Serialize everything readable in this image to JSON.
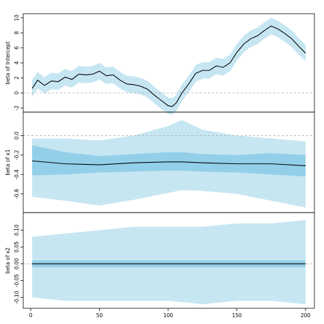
{
  "chart_data": [
    {
      "type": "line",
      "ylabel": "beta of Intercept",
      "xlim": [
        1,
        200
      ],
      "ylim": [
        -2,
        10
      ],
      "yticks": [
        -2,
        0,
        2,
        4,
        6,
        8,
        10
      ],
      "reference_line": 0,
      "series": [
        {
          "x": [
            1,
            5,
            10,
            15,
            20,
            25,
            30,
            35,
            40,
            45,
            50,
            55,
            60,
            65,
            70,
            75,
            80,
            85,
            90,
            95,
            100,
            103,
            106,
            110,
            115,
            120,
            125,
            130,
            135,
            140,
            145,
            150,
            155,
            160,
            165,
            170,
            175,
            180,
            185,
            190,
            195,
            200
          ],
          "values": [
            0.6,
            1.7,
            1.0,
            1.6,
            1.5,
            2.1,
            1.8,
            2.5,
            2.4,
            2.5,
            2.9,
            2.3,
            2.4,
            1.7,
            1.2,
            1.1,
            0.9,
            0.5,
            -0.3,
            -1.0,
            -1.7,
            -1.8,
            -1.3,
            0.0,
            1.2,
            2.6,
            3.0,
            3.0,
            3.6,
            3.4,
            4.0,
            5.4,
            6.5,
            7.2,
            7.6,
            8.3,
            8.9,
            8.5,
            7.9,
            7.2,
            6.2,
            5.3
          ],
          "band": 1.1
        }
      ]
    },
    {
      "type": "line",
      "ylabel": "beta of x1",
      "xlim": [
        1,
        200
      ],
      "ylim": [
        -0.75,
        0.2
      ],
      "yticks": [
        -0.6,
        -0.4,
        -0.2,
        0.0
      ],
      "reference_line": 0,
      "series": [
        {
          "x": [
            1,
            25,
            50,
            75,
            100,
            110,
            125,
            150,
            175,
            200
          ],
          "values": [
            -0.26,
            -0.29,
            -0.3,
            -0.28,
            -0.27,
            -0.27,
            -0.28,
            -0.29,
            -0.29,
            -0.31
          ],
          "inner_lower": [
            -0.41,
            -0.4,
            -0.38,
            -0.37,
            -0.36,
            -0.36,
            -0.37,
            -0.38,
            -0.4,
            -0.42
          ],
          "inner_upper": [
            -0.1,
            -0.17,
            -0.21,
            -0.19,
            -0.17,
            -0.17,
            -0.19,
            -0.2,
            -0.18,
            -0.2
          ],
          "outer_lower": [
            -0.63,
            -0.67,
            -0.72,
            -0.66,
            -0.59,
            -0.56,
            -0.57,
            -0.6,
            -0.67,
            -0.74
          ],
          "outer_upper": [
            -0.03,
            -0.03,
            -0.05,
            0.0,
            0.1,
            0.16,
            0.06,
            0.0,
            -0.03,
            -0.06
          ]
        }
      ]
    },
    {
      "type": "line",
      "ylabel": "beta of x2",
      "xlim": [
        1,
        200
      ],
      "ylim": [
        -0.12,
        0.14
      ],
      "yticks": [
        -0.1,
        -0.05,
        0.0,
        0.05,
        0.1
      ],
      "xticks": [
        0,
        50,
        100,
        150,
        200
      ],
      "reference_line": 0,
      "series": [
        {
          "x": [
            1,
            25,
            50,
            75,
            100,
            125,
            150,
            175,
            200
          ],
          "values": [
            0.0,
            0.0,
            0.0,
            0.0,
            0.0,
            0.0,
            0.0,
            0.0,
            0.0
          ],
          "inner_lower": [
            -0.01,
            -0.01,
            -0.01,
            -0.01,
            -0.01,
            -0.01,
            -0.01,
            -0.01,
            -0.01
          ],
          "inner_upper": [
            0.01,
            0.01,
            0.01,
            0.01,
            0.01,
            0.01,
            0.01,
            0.01,
            0.01
          ],
          "outer_lower": [
            -0.1,
            -0.11,
            -0.11,
            -0.11,
            -0.11,
            -0.12,
            -0.11,
            -0.11,
            -0.12
          ],
          "outer_upper": [
            0.08,
            0.09,
            0.1,
            0.11,
            0.11,
            0.11,
            0.12,
            0.12,
            0.13
          ]
        }
      ]
    }
  ],
  "colors": {
    "outer_band": "#c6e6f2",
    "inner_band": "#93cfe8",
    "line": "#000000",
    "reference": "#aaaaaa",
    "frame": "#000000"
  }
}
